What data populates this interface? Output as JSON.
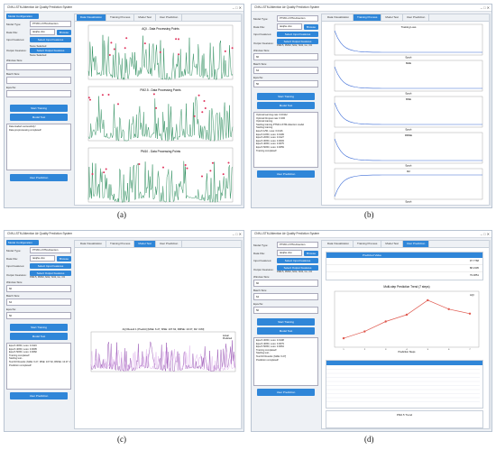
{
  "app_title": "CNN-LSTM-Attention Air Quality Prediction System",
  "colors": {
    "accent": "#2f86d8",
    "series_green": "#2f8f5f",
    "series_purple": "#9b59b6",
    "loss_blue": "#3b6bd6",
    "pred_red": "#e05a50"
  },
  "sidebar": {
    "group_label": "Model Configuration",
    "model_type_label": "Model Type:",
    "model_type_value": "PTMO-LSTM-Attention",
    "data_file_label": "Data File:",
    "data_file_value": "taiqihe.xlsx",
    "browse_label": "Browse",
    "input_features_label": "Input Features:",
    "select_input_label": "Select Input Features",
    "output_features_label": "Output Features:",
    "select_output_label": "Select Output Features",
    "none_selected": "None Selected",
    "output_selected": "PM2.5, PM10, NO2, SO2, Co, O3",
    "window_size_label": "Window Size:",
    "window_size_value": "60",
    "batch_size_label": "Batch Size:",
    "batch_size_value": "64",
    "epochs_label": "Epochs:",
    "epochs_value": "50",
    "start_training_label": "Start Training",
    "model_test_label": "Model Test",
    "user_prediction_label": "User Prediction"
  },
  "tabs": [
    "Data Visualization",
    "Training Process",
    "Model Test",
    "User Prediction"
  ],
  "panel_a": {
    "log": [
      "Data loaded successfully!",
      "Data preprocessing completed!"
    ],
    "chart_titles": [
      "AQI - Data Processing Points",
      "PM2.5 - Data Processing Points",
      "PM10 - Data Processing Points"
    ],
    "legend": [
      "Original Data",
      "Processed Data",
      "Abnormal Data Point"
    ]
  },
  "panel_b": {
    "log": [
      "Optimal learning rate: 0.00112",
      "Optimal Dropout rate: 0.300",
      "Optimal training",
      "Starting training PTMO-LSTM-Attention model",
      "Starting training",
      "Epoch 1/50, Loss: 0.0416",
      "Epoch 10/50, Loss: 0.0199",
      "Epoch 20/50, Loss: 0.0127",
      "Epoch 30/50, Loss: 0.0093",
      "Epoch 40/50, Loss: 0.0075",
      "Epoch 50/50, Loss: 0.0059",
      "Training completed!"
    ],
    "chart_titles": [
      "Training Loss",
      "MAE",
      "MSE",
      "RMSE",
      "R2"
    ],
    "xlabel": "Epoch"
  },
  "panel_c": {
    "log": [
      "Epoch 30/50, Loss: 0.0119",
      "Epoch 40/50, Loss: 0.0095",
      "Epoch 50/50, Loss: 0.0082",
      "Training completed!",
      "Starting test...",
      "Test R2 Results: [MAE: 6.27, MSE: 107.62, RMSE: 10.37, R2: 0.83]",
      "Prediction completed!"
    ],
    "chart_title": "AQI Result 1 (Predict) [MAE: 6.27, MSE: 107.62, RMSE: 10.37, R2: 0.83]",
    "legend": [
      "Actual",
      "Predicted"
    ]
  },
  "panel_d": {
    "log": [
      "Epoch 30/50, Loss: 0.0108",
      "Epoch 40/50, Loss: 0.0079",
      "Epoch 50/50, Loss: 0.0064",
      "Training completed!",
      "Starting test...",
      "Test R2 Results: [MAE: 6.27]",
      "Prediction completed!"
    ],
    "table_header": [
      "Predicted Value"
    ],
    "table_values": [
      "97.7768",
      "88.2305",
      "79.0851"
    ],
    "chart_title": "Multi-step Prediction Trend (7 steps)",
    "chart_xlabel": "Prediction Steps",
    "chart_legend": "AQI",
    "steps": [
      1,
      2,
      3,
      4,
      5,
      6,
      7
    ],
    "values": [
      58,
      64,
      73,
      79,
      92,
      84,
      80
    ],
    "second_title": "PM2.5 Trend"
  },
  "captions": [
    "(a)",
    "(b)",
    "(c)",
    "(d)"
  ]
}
